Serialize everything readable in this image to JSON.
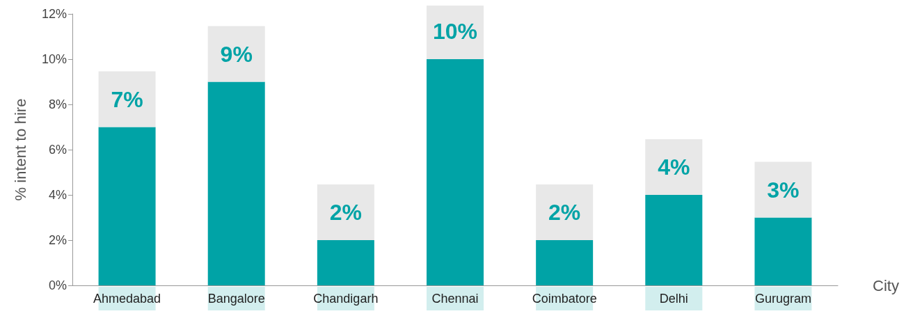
{
  "chart_data": {
    "type": "bar",
    "xlabel": "City",
    "ylabel": "% intent to hire",
    "categories": [
      "Ahmedabad",
      "Bangalore",
      "Chandigarh",
      "Chennai",
      "Coimbatore",
      "Delhi",
      "Gurugram"
    ],
    "values": [
      7,
      9,
      2,
      10,
      2,
      4,
      3
    ],
    "color": "#00a3a6",
    "value_labels": [
      "7%",
      "9%",
      "2%",
      "10%",
      "2%",
      "4%",
      "3%"
    ],
    "ylim": [
      0,
      12
    ],
    "yticks": [
      {
        "value": 0,
        "label": "0%"
      },
      {
        "value": 2,
        "label": "2%"
      },
      {
        "value": 4,
        "label": "4%"
      },
      {
        "value": 6,
        "label": "6%"
      },
      {
        "value": 8,
        "label": "8%"
      },
      {
        "value": 10,
        "label": "10%"
      },
      {
        "value": 12,
        "label": "12%"
      }
    ],
    "grid": false
  }
}
